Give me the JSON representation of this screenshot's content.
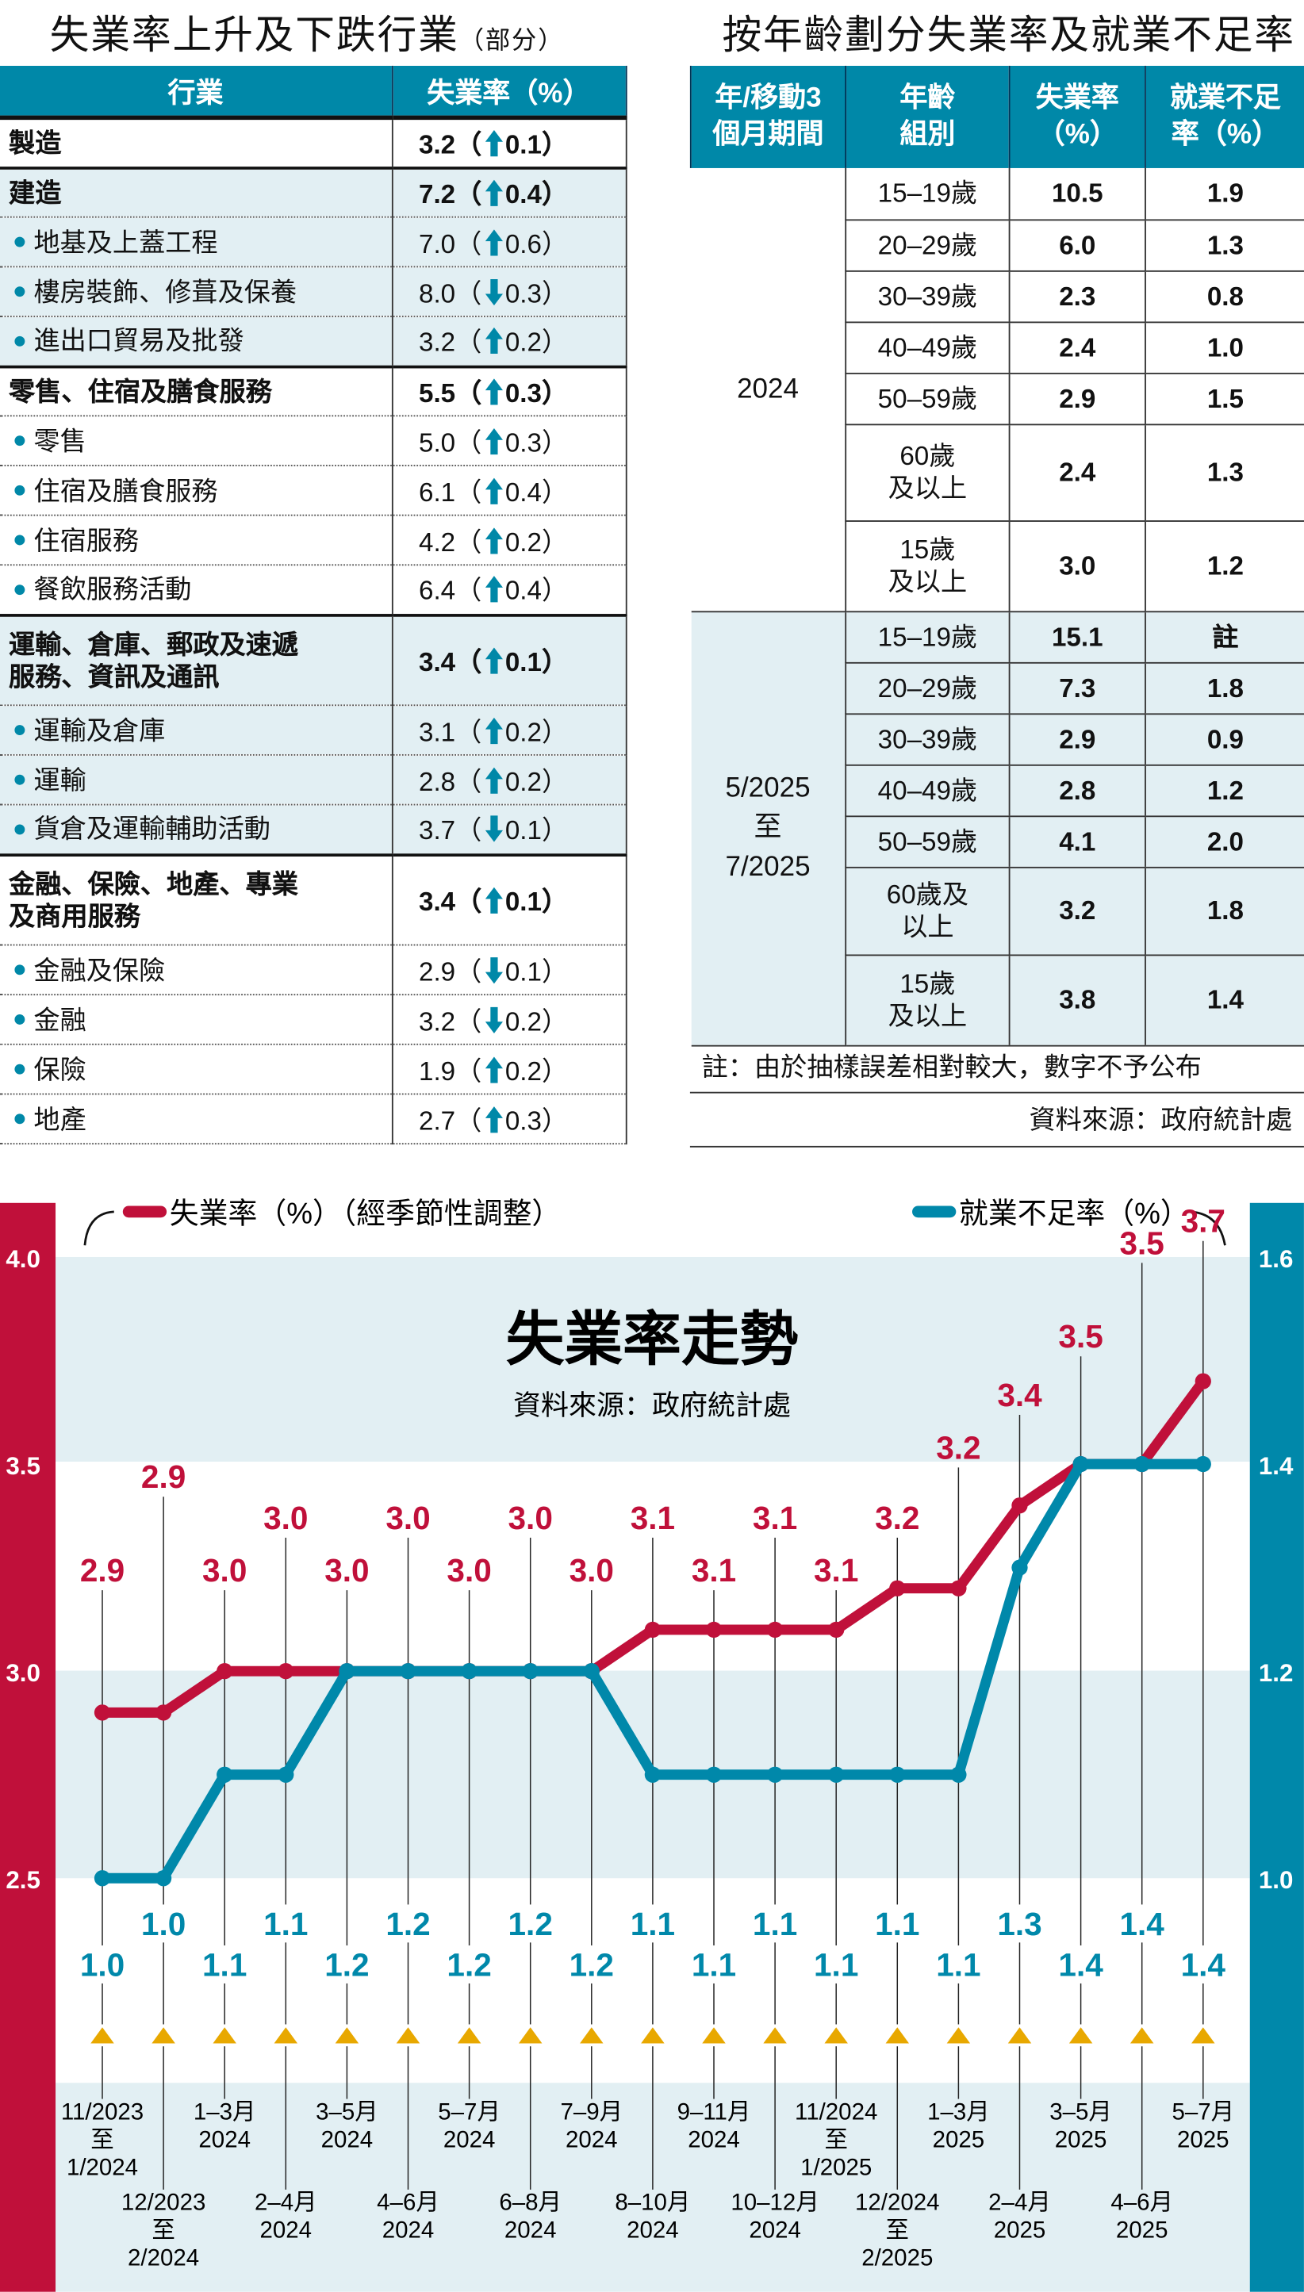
{
  "left_table": {
    "title": "失業率上升及下跌行業",
    "title_note": "（部分）",
    "headers": [
      "行業",
      "失業率（%）"
    ],
    "rows": [
      {
        "label": "製造",
        "bold": true,
        "sub": false,
        "rate": "3.2",
        "dir": "up",
        "change": "0.1",
        "shade": false,
        "group_start": true
      },
      {
        "label": "建造",
        "bold": true,
        "sub": false,
        "rate": "7.2",
        "dir": "up",
        "change": "0.4",
        "shade": true,
        "group_start": true
      },
      {
        "label": "地基及上蓋工程",
        "bold": false,
        "sub": true,
        "rate": "7.0",
        "dir": "up",
        "change": "0.6",
        "shade": true
      },
      {
        "label": "樓房裝飾、修葺及保養",
        "bold": false,
        "sub": true,
        "rate": "8.0",
        "dir": "down",
        "change": "0.3",
        "shade": true
      },
      {
        "label": "進出口貿易及批發",
        "bold": false,
        "sub": true,
        "rate": "3.2",
        "dir": "up",
        "change": "0.2",
        "shade": true
      },
      {
        "label": "零售、住宿及膳食服務",
        "bold": true,
        "sub": false,
        "rate": "5.5",
        "dir": "up",
        "change": "0.3",
        "shade": false,
        "group_start": true
      },
      {
        "label": "零售",
        "bold": false,
        "sub": true,
        "rate": "5.0",
        "dir": "up",
        "change": "0.3",
        "shade": false
      },
      {
        "label": "住宿及膳食服務",
        "bold": false,
        "sub": true,
        "rate": "6.1",
        "dir": "up",
        "change": "0.4",
        "shade": false
      },
      {
        "label": "住宿服務",
        "bold": false,
        "sub": true,
        "rate": "4.2",
        "dir": "up",
        "change": "0.2",
        "shade": false
      },
      {
        "label": "餐飲服務活動",
        "bold": false,
        "sub": true,
        "rate": "6.4",
        "dir": "up",
        "change": "0.4",
        "shade": false
      },
      {
        "label": "運輸、倉庫、郵政及速遞服務、資訊及通訊",
        "label_lines": [
          "運輸、倉庫、郵政及速遞",
          "服務、資訊及通訊"
        ],
        "bold": true,
        "sub": false,
        "rate": "3.4",
        "dir": "up",
        "change": "0.1",
        "shade": true,
        "group_start": true
      },
      {
        "label": "運輸及倉庫",
        "bold": false,
        "sub": true,
        "rate": "3.1",
        "dir": "up",
        "change": "0.2",
        "shade": true
      },
      {
        "label": "運輸",
        "bold": false,
        "sub": true,
        "rate": "2.8",
        "dir": "up",
        "change": "0.2",
        "shade": true
      },
      {
        "label": "貨倉及運輸輔助活動",
        "bold": false,
        "sub": true,
        "rate": "3.7",
        "dir": "down",
        "change": "0.1",
        "shade": true
      },
      {
        "label": "金融、保險、地產、專業及商用服務",
        "label_lines": [
          "金融、保險、地產、專業",
          "及商用服務"
        ],
        "bold": true,
        "sub": false,
        "rate": "3.4",
        "dir": "up",
        "change": "0.1",
        "shade": false,
        "group_start": true
      },
      {
        "label": "金融及保險",
        "bold": false,
        "sub": true,
        "rate": "2.9",
        "dir": "down",
        "change": "0.1",
        "shade": false
      },
      {
        "label": "金融",
        "bold": false,
        "sub": true,
        "rate": "3.2",
        "dir": "down",
        "change": "0.2",
        "shade": false
      },
      {
        "label": "保險",
        "bold": false,
        "sub": true,
        "rate": "1.9",
        "dir": "up",
        "change": "0.2",
        "shade": false
      },
      {
        "label": "地產",
        "bold": false,
        "sub": true,
        "rate": "2.7",
        "dir": "up",
        "change": "0.3",
        "shade": false
      }
    ]
  },
  "right_table": {
    "title": "按年齡劃分失業率及就業不足率",
    "headers": [
      [
        "年/移動3",
        "個月期間"
      ],
      [
        "年齡",
        "組別"
      ],
      [
        "失業率",
        "（%）"
      ],
      [
        "就業不足",
        "率（%）"
      ]
    ],
    "groups": [
      {
        "period": [
          "2024"
        ],
        "shade": false,
        "rows": [
          {
            "age": [
              "15–19歲"
            ],
            "unemp": "10.5",
            "under": "1.9"
          },
          {
            "age": [
              "20–29歲"
            ],
            "unemp": "6.0",
            "under": "1.3"
          },
          {
            "age": [
              "30–39歲"
            ],
            "unemp": "2.3",
            "under": "0.8"
          },
          {
            "age": [
              "40–49歲"
            ],
            "unemp": "2.4",
            "under": "1.0"
          },
          {
            "age": [
              "50–59歲"
            ],
            "unemp": "2.9",
            "under": "1.5"
          },
          {
            "age": [
              "60歲",
              "及以上"
            ],
            "unemp": "2.4",
            "under": "1.3"
          },
          {
            "age": [
              "15歲",
              "及以上"
            ],
            "unemp": "3.0",
            "under": "1.2"
          }
        ]
      },
      {
        "period": [
          "5/2025",
          "至",
          "7/2025"
        ],
        "shade": true,
        "rows": [
          {
            "age": [
              "15–19歲"
            ],
            "unemp": "15.1",
            "under": "註"
          },
          {
            "age": [
              "20–29歲"
            ],
            "unemp": "7.3",
            "under": "1.8"
          },
          {
            "age": [
              "30–39歲"
            ],
            "unemp": "2.9",
            "under": "0.9"
          },
          {
            "age": [
              "40–49歲"
            ],
            "unemp": "2.8",
            "under": "1.2"
          },
          {
            "age": [
              "50–59歲"
            ],
            "unemp": "4.1",
            "under": "2.0"
          },
          {
            "age": [
              "60歲及",
              "以上"
            ],
            "unemp": "3.2",
            "under": "1.8"
          },
          {
            "age": [
              "15歲",
              "及以上"
            ],
            "unemp": "3.8",
            "under": "1.4"
          }
        ]
      }
    ],
    "note": "註：由於抽樣誤差相對較大，數字不予公布",
    "source": "資料來源：政府統計處"
  },
  "chart_data": {
    "type": "line",
    "title": "失業率走勢",
    "subtitle": "資料來源：政府統計處",
    "x": [
      "11/2023至1/2024",
      "12/2023至2/2024",
      "1–3月2024",
      "2–4月2024",
      "3–5月2024",
      "4–6月2024",
      "5–7月2024",
      "6–8月2024",
      "7–9月2024",
      "8–10月2024",
      "9–11月2024",
      "10–12月2024",
      "11/2024至1/2025",
      "12/2024至2/2025",
      "1–3月2025",
      "2–4月2025",
      "3–5月2025",
      "4–6月2025",
      "5–7月2025"
    ],
    "x_label_lines": [
      [
        "11/2023",
        "至",
        "1/2024"
      ],
      [
        "12/2023",
        "至",
        "2/2024"
      ],
      [
        "1–3月",
        "2024"
      ],
      [
        "2–4月",
        "2024"
      ],
      [
        "3–5月",
        "2024"
      ],
      [
        "4–6月",
        "2024"
      ],
      [
        "5–7月",
        "2024"
      ],
      [
        "6–8月",
        "2024"
      ],
      [
        "7–9月",
        "2024"
      ],
      [
        "8–10月",
        "2024"
      ],
      [
        "9–11月",
        "2024"
      ],
      [
        "10–12月",
        "2024"
      ],
      [
        "11/2024",
        "至",
        "1/2025"
      ],
      [
        "12/2024",
        "至",
        "2/2025"
      ],
      [
        "1–3月",
        "2025"
      ],
      [
        "2–4月",
        "2025"
      ],
      [
        "3–5月",
        "2025"
      ],
      [
        "4–6月",
        "2025"
      ],
      [
        "5–7月",
        "2025"
      ]
    ],
    "series": [
      {
        "name": "失業率（%）（經季節性調整）",
        "axis": "left",
        "color": "#c0103a",
        "values": [
          2.9,
          2.9,
          3.0,
          3.0,
          3.0,
          3.0,
          3.0,
          3.0,
          3.0,
          3.1,
          3.1,
          3.1,
          3.1,
          3.2,
          3.2,
          3.4,
          3.5,
          3.5,
          3.7
        ],
        "labels": [
          "2.9",
          "2.9",
          "3.0",
          "3.0",
          "3.0",
          "3.0",
          "3.0",
          "3.0",
          "3.0",
          "3.1",
          "3.1",
          "3.1",
          "3.1",
          "3.2",
          "3.2",
          "3.4",
          "3.5",
          "3.5",
          "3.7"
        ]
      },
      {
        "name": "就業不足率（%）",
        "axis": "right",
        "color": "#0088aa",
        "values": [
          1.0,
          1.0,
          1.1,
          1.1,
          1.2,
          1.2,
          1.2,
          1.2,
          1.2,
          1.1,
          1.1,
          1.1,
          1.1,
          1.1,
          1.1,
          1.3,
          1.4,
          1.4,
          1.4
        ],
        "labels": [
          "1.0",
          "1.0",
          "1.1",
          "1.1",
          "1.2",
          "1.2",
          "1.2",
          "1.2",
          "1.2",
          "1.1",
          "1.1",
          "1.1",
          "1.1",
          "1.1",
          "1.1",
          "1.3",
          "1.4",
          "1.4",
          "1.4"
        ]
      }
    ],
    "left_axis": {
      "ylim": [
        2.5,
        4.0
      ],
      "ticks": [
        "2.5",
        "3.0",
        "3.5",
        "4.0"
      ],
      "color": "#c0103a"
    },
    "right_axis": {
      "ylim": [
        1.0,
        1.6
      ],
      "ticks": [
        "1.0",
        "1.2",
        "1.4",
        "1.6"
      ],
      "color": "#0088aa"
    },
    "legend": [
      "失業率（%）（經季節性調整）",
      "就業不足率（%）"
    ],
    "marker_color": "#e8a800",
    "band_color": "#e2eff3"
  }
}
